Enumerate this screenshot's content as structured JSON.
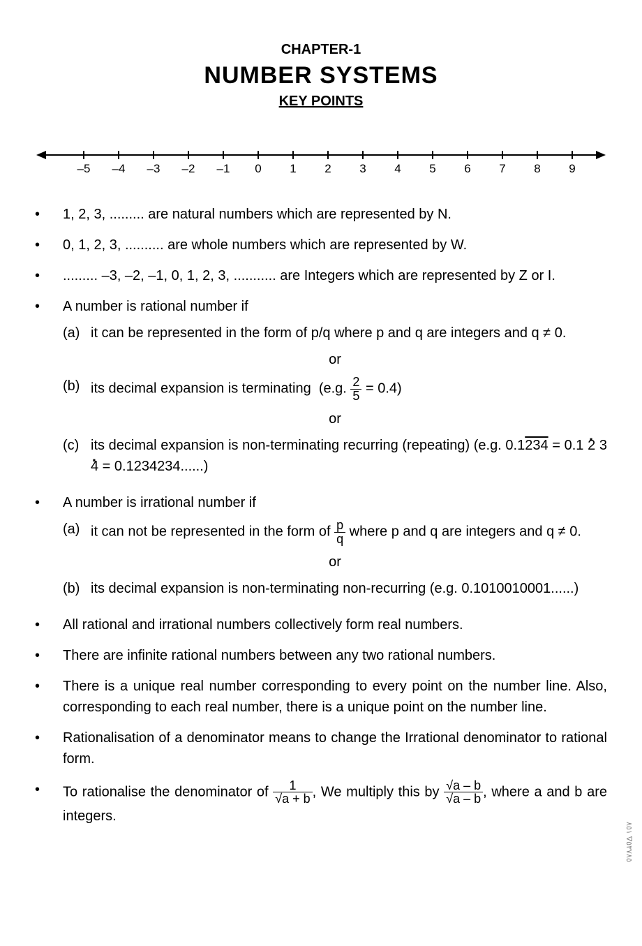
{
  "header": {
    "chapter": "CHAPTER-1",
    "title": "NUMBER SYSTEMS",
    "subtitle": "KEY POINTS"
  },
  "numberLine": {
    "ticks": [
      "–5",
      "–4",
      "–3",
      "–2",
      "–1",
      "0",
      "1",
      "2",
      "3",
      "4",
      "5",
      "6",
      "7",
      "8",
      "9"
    ]
  },
  "bullets": {
    "b1": "1, 2, 3, ......... are natural numbers which are represented by N.",
    "b2": "0, 1, 2, 3, .......... are whole numbers which are represented by W.",
    "b3": "......... –3, –2, –1, 0, 1, 2, 3, ........... are Integers which are represented by Z or I.",
    "b4": "A number is rational number if",
    "b4a_pre": "it can be represented in the form of p/q where p and q are integers and q ≠ 0.",
    "b4b_pre": "its decimal expansion is terminating",
    "b4b_eg_prefix": "(e.g. ",
    "b4b_eg_num": "2",
    "b4b_eg_den": "5",
    "b4b_eg_suffix": " = 0.4)",
    "b4c_pre": "its decimal expansion is non-terminating recurring (repeating) (e.g. 0.1",
    "b4c_overline": "234",
    "b4c_mid": " = 0.1 ",
    "b4c_d2": "2",
    "b4c_d3": " 3 ",
    "b4c_d4": "4",
    "b4c_suffix": " = 0.1234234......)",
    "b5": "A number is irrational number if",
    "b5a_pre": "it can not be represented in the form of ",
    "b5a_num": "p",
    "b5a_den": "q",
    "b5a_suffix": " where p and q are integers and q ≠ 0.",
    "b5b": "its decimal expansion is non-terminating non-recurring (e.g. 0.1010010001......)",
    "b6": "All rational and irrational numbers collectively form real numbers.",
    "b7": "There are infinite rational numbers between any two rational numbers.",
    "b8": "There is a unique real number corresponding to every point on the number line. Also, corresponding to each real number, there is a unique point on the number line.",
    "b9": "Rationalisation of a denominator means to change the Irrational denominator to rational form.",
    "b10_pre": "To rationalise the denominator of ",
    "b10_frac1_num": "1",
    "b10_frac1_den": "√a + b",
    "b10_mid": ", We multiply this by ",
    "b10_frac2_num": "√a – b",
    "b10_frac2_den": "√a – b",
    "b10_suffix": ", where a and b are integers."
  },
  "labels": {
    "or": "or",
    "a": "(a)",
    "b": "(b)",
    "c": "(c)"
  },
  "side": "۸٥٣٧∇ ٥١۸٥"
}
